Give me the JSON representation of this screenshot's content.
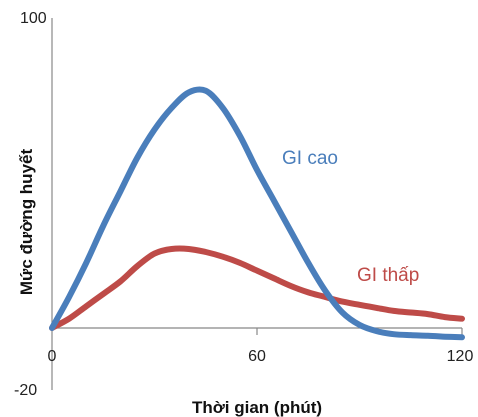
{
  "chart_data": {
    "type": "line",
    "xlabel": "Thời gian (phút)",
    "ylabel": "Mức đường huyết",
    "xlim": [
      0,
      120
    ],
    "ylim": [
      -20,
      100
    ],
    "x_ticks": [
      "0",
      "60",
      "120"
    ],
    "y_ticks": [
      "100",
      "-20"
    ],
    "grid": false,
    "series": [
      {
        "name": "GI cao",
        "color": "#4a7ebb",
        "x": [
          0,
          5,
          10,
          15,
          20,
          25,
          30,
          35,
          40,
          45,
          50,
          55,
          60,
          65,
          70,
          75,
          80,
          85,
          90,
          95,
          100,
          105,
          110,
          115,
          120
        ],
        "y": [
          0,
          10,
          21,
          33,
          44,
          55,
          64,
          71,
          76,
          76.5,
          71,
          62,
          51,
          41,
          31,
          21,
          12,
          5,
          1,
          -1,
          -2,
          -2.3,
          -2.5,
          -2.8,
          -3
        ]
      },
      {
        "name": "GI thấp",
        "color": "#be4b48",
        "x": [
          0,
          5,
          10,
          15,
          20,
          25,
          30,
          35,
          40,
          45,
          50,
          55,
          60,
          65,
          70,
          75,
          80,
          85,
          90,
          95,
          100,
          105,
          110,
          115,
          120
        ],
        "y": [
          0,
          3,
          7,
          11,
          15,
          20,
          24,
          25.5,
          25.5,
          24.5,
          23,
          21,
          18.5,
          16,
          13.5,
          11.5,
          10,
          8.5,
          7.5,
          6.5,
          5.5,
          5,
          4.5,
          3.5,
          3
        ]
      }
    ]
  }
}
